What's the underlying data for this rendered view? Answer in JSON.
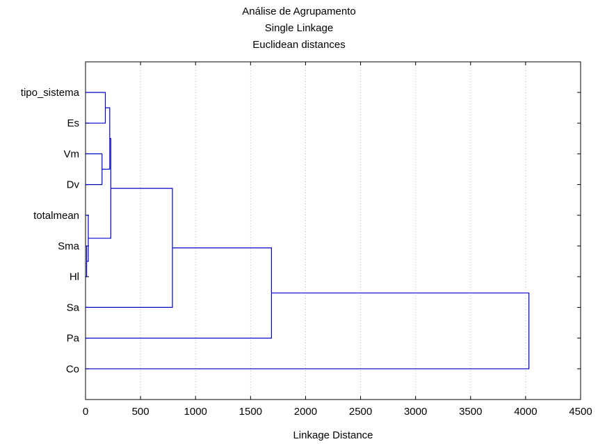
{
  "chart_data": {
    "type": "dendrogram",
    "title": "Análise de Agrupamento",
    "subtitle": "Single Linkage",
    "subtitle2": "Euclidean distances",
    "xlabel": "Linkage Distance",
    "xlim": [
      0,
      4500
    ],
    "xticks": [
      0,
      500,
      1000,
      1500,
      2000,
      2500,
      3000,
      3500,
      4000,
      4500
    ],
    "grid": "vertical dotted",
    "line_color": "#0000cc",
    "leaves": [
      "tipo_sistema",
      "Es",
      "Vm",
      "Dv",
      "totalmean",
      "Sma",
      "Hl",
      "Sa",
      "Pa",
      "Co"
    ],
    "merges": [
      {
        "a": "L:5",
        "b": "L:6",
        "height": 10
      },
      {
        "a": "L:4",
        "b": "N:0",
        "height": 25
      },
      {
        "a": "L:2",
        "b": "L:3",
        "height": 150
      },
      {
        "a": "L:0",
        "b": "L:1",
        "height": 180
      },
      {
        "a": "N:3",
        "b": "N:2",
        "height": 220
      },
      {
        "a": "N:4",
        "b": "N:1",
        "height": 230
      },
      {
        "a": "N:5",
        "b": "L:7",
        "height": 790
      },
      {
        "a": "N:6",
        "b": "L:8",
        "height": 1690
      },
      {
        "a": "N:7",
        "b": "L:9",
        "height": 4030
      }
    ]
  }
}
